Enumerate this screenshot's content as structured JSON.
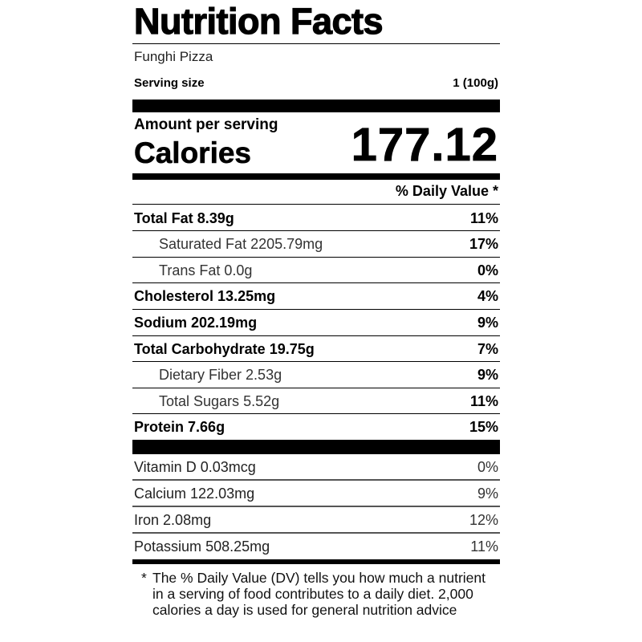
{
  "title": "Nutrition Facts",
  "food_name": "Funghi Pizza",
  "serving": {
    "label": "Serving size",
    "value": "1 (100g)"
  },
  "amount_per_serving": "Amount per serving",
  "calories": {
    "label": "Calories",
    "value": "177.12"
  },
  "daily_value_header": "% Daily Value *",
  "nutrients": [
    {
      "name": "Total Fat",
      "amount": "8.39g",
      "dv": "11%"
    },
    {
      "name": "Saturated Fat",
      "amount": "2205.79mg",
      "dv": "17%"
    },
    {
      "name": "Trans Fat",
      "amount": "0.0g",
      "dv": "0%"
    },
    {
      "name": "Cholesterol",
      "amount": "13.25mg",
      "dv": "4%"
    },
    {
      "name": "Sodium",
      "amount": "202.19mg",
      "dv": "9%"
    },
    {
      "name": "Total Carbohydrate",
      "amount": "19.75g",
      "dv": "7%"
    },
    {
      "name": "Dietary Fiber",
      "amount": "2.53g",
      "dv": "9%"
    },
    {
      "name": "Total Sugars",
      "amount": "5.52g",
      "dv": "11%"
    },
    {
      "name": "Protein",
      "amount": "7.66g",
      "dv": "15%"
    }
  ],
  "vitamins": [
    {
      "name": "Vitamin D",
      "amount": "0.03mcg",
      "dv": "0%"
    },
    {
      "name": "Calcium",
      "amount": "122.03mg",
      "dv": "9%"
    },
    {
      "name": "Iron",
      "amount": "2.08mg",
      "dv": "12%"
    },
    {
      "name": "Potassium",
      "amount": "508.25mg",
      "dv": "11%"
    }
  ],
  "footnote": {
    "star": "*",
    "text": "The % Daily Value (DV) tells you how much a nutrient in a serving of food contributes to a daily diet. 2,000 calories a day is used for general nutrition advice"
  }
}
